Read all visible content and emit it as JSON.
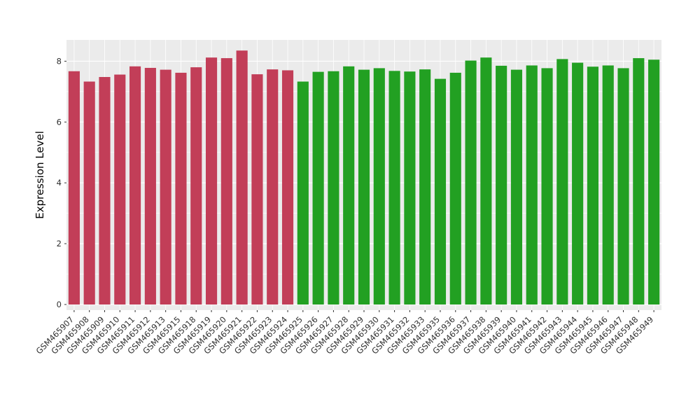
{
  "chart_data": {
    "type": "bar",
    "title": "",
    "xlabel": "",
    "ylabel": "Expression Level",
    "categories": [
      "GSM465907",
      "GSM465908",
      "GSM465909",
      "GSM465910",
      "GSM465911",
      "GSM465912",
      "GSM465913",
      "GSM465915",
      "GSM465918",
      "GSM465919",
      "GSM465920",
      "GSM465921",
      "GSM465922",
      "GSM465923",
      "GSM465924",
      "GSM465925",
      "GSM465926",
      "GSM465927",
      "GSM465928",
      "GSM465929",
      "GSM465930",
      "GSM465931",
      "GSM465932",
      "GSM465933",
      "GSM465935",
      "GSM465936",
      "GSM465937",
      "GSM465938",
      "GSM465939",
      "GSM465940",
      "GSM465941",
      "GSM465942",
      "GSM465943",
      "GSM465944",
      "GSM465945",
      "GSM465946",
      "GSM465947",
      "GSM465948",
      "GSM465949"
    ],
    "values": [
      7.67,
      7.33,
      7.48,
      7.56,
      7.83,
      7.78,
      7.72,
      7.62,
      7.8,
      8.12,
      8.1,
      8.35,
      7.57,
      7.73,
      7.7,
      7.33,
      7.65,
      7.67,
      7.83,
      7.72,
      7.77,
      7.68,
      7.66,
      7.73,
      7.42,
      7.62,
      8.02,
      8.12,
      7.85,
      7.72,
      7.86,
      7.77,
      8.07,
      7.95,
      7.82,
      7.86,
      7.77,
      8.1,
      8.05
    ],
    "groups": [
      "red",
      "red",
      "red",
      "red",
      "red",
      "red",
      "red",
      "red",
      "red",
      "red",
      "red",
      "red",
      "red",
      "red",
      "red",
      "green",
      "green",
      "green",
      "green",
      "green",
      "green",
      "green",
      "green",
      "green",
      "green",
      "green",
      "green",
      "green",
      "green",
      "green",
      "green",
      "green",
      "green",
      "green",
      "green",
      "green",
      "green",
      "green",
      "green"
    ],
    "group_colors": {
      "red": "#C23E58",
      "green": "#22A022"
    },
    "yticks": [
      0,
      2,
      4,
      6,
      8
    ],
    "yticks_minor": [
      1,
      3,
      5,
      7
    ],
    "ylim": [
      0,
      8.7
    ],
    "grid": "on",
    "legend": "none",
    "panel_bg": "#EBEBEB",
    "grid_color": "#FFFFFF",
    "tick_color": "#333333"
  }
}
